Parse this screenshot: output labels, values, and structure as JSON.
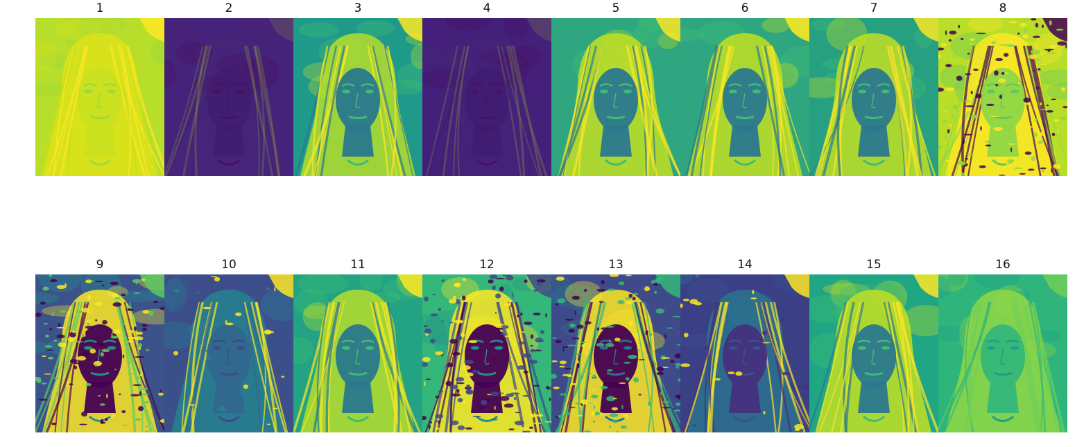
{
  "panels": [
    {
      "label": "1",
      "style": "pale",
      "bg": "#b6de2b",
      "base": "#c8e020",
      "mid": "#9fd93a",
      "hi": "#dde318",
      "accent": "#fde725"
    },
    {
      "label": "2",
      "style": "dark",
      "bg": "#45237a",
      "base": "#3e1a6e",
      "mid": "#471164",
      "hi": "#482677",
      "accent": "#b5de2b"
    },
    {
      "label": "3",
      "style": "normal",
      "bg": "#1f9a8a",
      "base": "#2a788e",
      "mid": "#3fbc73",
      "hi": "#b5de2b",
      "accent": "#fde725"
    },
    {
      "label": "4",
      "style": "dark",
      "bg": "#44207a",
      "base": "#3e1a6e",
      "mid": "#471164",
      "hi": "#482677",
      "accent": "#b5de2b"
    },
    {
      "label": "5",
      "style": "normal",
      "bg": "#2fa67f",
      "base": "#2a788e",
      "mid": "#3fbc73",
      "hi": "#c2df23",
      "accent": "#fde725"
    },
    {
      "label": "6",
      "style": "normal",
      "bg": "#2fa67f",
      "base": "#2a788e",
      "mid": "#3fbc73",
      "hi": "#c2df23",
      "accent": "#fde725"
    },
    {
      "label": "7",
      "style": "normal",
      "bg": "#27a082",
      "base": "#2a788e",
      "mid": "#3fbc73",
      "hi": "#c2df23",
      "accent": "#fde725"
    },
    {
      "label": "8",
      "style": "noisy-pale",
      "bg": "#b8de29",
      "base": "#8fd744",
      "mid": "#5ec962",
      "hi": "#fde725",
      "accent": "#440154"
    },
    {
      "label": "9",
      "style": "noisy",
      "bg": "#3b528b",
      "base": "#440154",
      "mid": "#21918c",
      "hi": "#fde725",
      "accent": "#5ec962"
    },
    {
      "label": "10",
      "style": "dark-blue",
      "bg": "#3b4f8a",
      "base": "#31688e",
      "mid": "#3e4a89",
      "hi": "#26828e",
      "accent": "#fde725"
    },
    {
      "label": "11",
      "style": "normal",
      "bg": "#23a383",
      "base": "#2a788e",
      "mid": "#3fbc73",
      "hi": "#b5de2b",
      "accent": "#fde725"
    },
    {
      "label": "12",
      "style": "noisy",
      "bg": "#35b779",
      "base": "#440154",
      "mid": "#21918c",
      "hi": "#fde725",
      "accent": "#3e4a89"
    },
    {
      "label": "13",
      "style": "noisy",
      "bg": "#3e4a89",
      "base": "#440154",
      "mid": "#2c728e",
      "hi": "#fde725",
      "accent": "#35b779"
    },
    {
      "label": "14",
      "style": "dark-blue",
      "bg": "#3b3f86",
      "base": "#46327e",
      "mid": "#3b528b",
      "hi": "#2c728e",
      "accent": "#fde725"
    },
    {
      "label": "15",
      "style": "normal",
      "bg": "#21a685",
      "base": "#2a788e",
      "mid": "#3fbc73",
      "hi": "#c2df23",
      "accent": "#fde725"
    },
    {
      "label": "16",
      "style": "pale",
      "bg": "#2fb47c",
      "base": "#35b779",
      "mid": "#1f9e89",
      "hi": "#8fd744",
      "accent": "#6ece58"
    }
  ]
}
